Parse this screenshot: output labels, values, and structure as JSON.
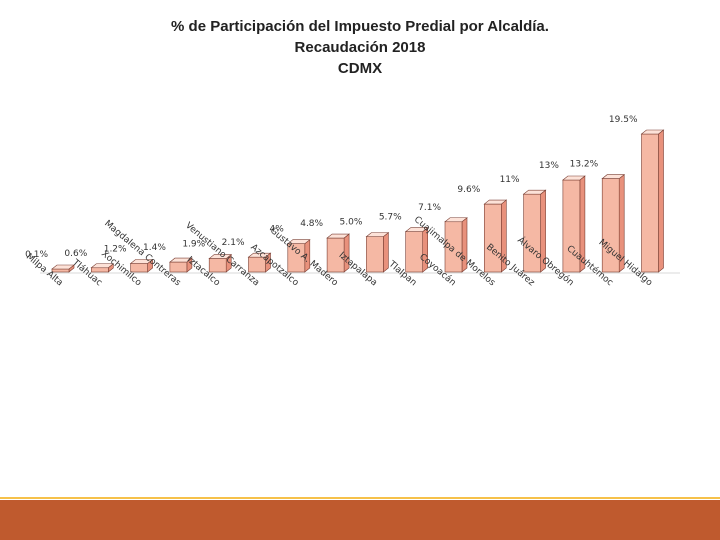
{
  "colors": {
    "bar_front": "#f5b8a4",
    "bar_side": "#e8917c",
    "bar_top": "#fde2d8",
    "bar_stroke": "#7a3e32",
    "footer": "#bf5a2e",
    "footer_line": "#f6c14a"
  },
  "chart_data": {
    "type": "bar",
    "title": "% de Participación del Impuesto Predial por Alcaldía.",
    "subtitle": "Recaudación 2018",
    "subtitle2": "CDMX",
    "categories": [
      "Milpa Alta",
      "Tláhuac",
      "Xochimilco",
      "Magdalena Contreras",
      "Iztacalco",
      "Venustiano Carranza",
      "Azcapotzalco",
      "Gustavo A. Madero",
      "Iztapalapa",
      "Tlalpan",
      "Coyoacán",
      "Cuajimalpa de Morelos",
      "Benito Juárez",
      "Álvaro Obregón",
      "Cuauhtémoc",
      "Miguel Hidalgo"
    ],
    "values": [
      0.1,
      0.6,
      1.2,
      1.4,
      1.9,
      2.1,
      4,
      4.8,
      5.0,
      5.7,
      7.1,
      9.6,
      11,
      13,
      13.2,
      19.5
    ],
    "data_labels": [
      "0.1%",
      "0.6%",
      "1.2%",
      "1.4%",
      "1.9%",
      "2.1%",
      "4%",
      "4.8%",
      "5.0%",
      "5.7%",
      "7.1%",
      "9.6%",
      "11%",
      "13%",
      "13.2%",
      "19.5%"
    ],
    "ylim": [
      0,
      19.5
    ],
    "xlabel": "",
    "ylabel": ""
  }
}
